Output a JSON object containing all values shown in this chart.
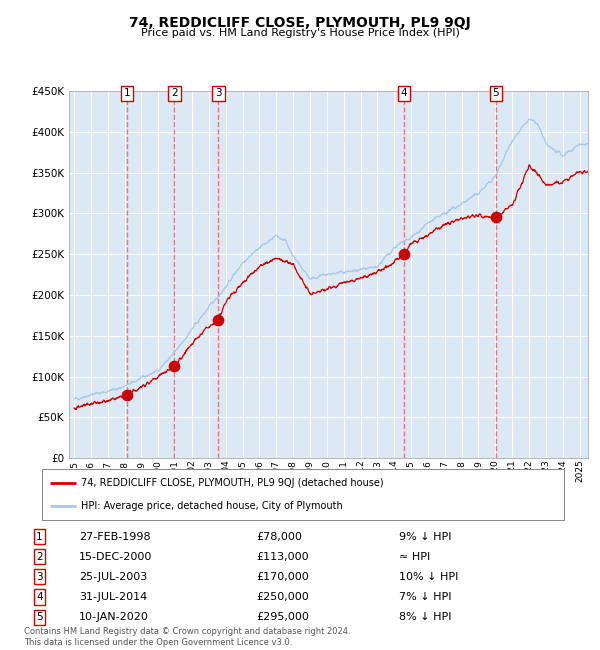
{
  "title": "74, REDDICLIFF CLOSE, PLYMOUTH, PL9 9QJ",
  "subtitle": "Price paid vs. HM Land Registry's House Price Index (HPI)",
  "background_color": "#dce9f5",
  "plot_bg_color": "#dce9f5",
  "hpi_color": "#a8c8e8",
  "price_color": "#cc0000",
  "marker_color": "#cc0000",
  "dashed_line_color": "#dd6666",
  "sale_dates_x": [
    1998.15,
    2000.96,
    2003.56,
    2014.58,
    2020.03
  ],
  "sale_prices_y": [
    78000,
    113000,
    170000,
    250000,
    295000
  ],
  "sale_labels": [
    "1",
    "2",
    "3",
    "4",
    "5"
  ],
  "sale_label_dates": [
    "27-FEB-1998",
    "15-DEC-2000",
    "25-JUL-2003",
    "31-JUL-2014",
    "10-JAN-2020"
  ],
  "sale_label_prices": [
    "£78,000",
    "£113,000",
    "£170,000",
    "£250,000",
    "£295,000"
  ],
  "sale_label_hpi": [
    "9% ↓ HPI",
    "≈ HPI",
    "10% ↓ HPI",
    "7% ↓ HPI",
    "8% ↓ HPI"
  ],
  "legend_line1": "74, REDDICLIFF CLOSE, PLYMOUTH, PL9 9QJ (detached house)",
  "legend_line2": "HPI: Average price, detached house, City of Plymouth",
  "footer": "Contains HM Land Registry data © Crown copyright and database right 2024.\nThis data is licensed under the Open Government Licence v3.0.",
  "ylim": [
    0,
    450000
  ],
  "xlim_start": 1994.7,
  "xlim_end": 2025.5,
  "ytick_values": [
    0,
    50000,
    100000,
    150000,
    200000,
    250000,
    300000,
    350000,
    400000,
    450000
  ],
  "ytick_labels": [
    "£0",
    "£50K",
    "£100K",
    "£150K",
    "£200K",
    "£250K",
    "£300K",
    "£350K",
    "£400K",
    "£450K"
  ],
  "xtick_years": [
    1995,
    1996,
    1997,
    1998,
    1999,
    2000,
    2001,
    2002,
    2003,
    2004,
    2005,
    2006,
    2007,
    2008,
    2009,
    2010,
    2011,
    2012,
    2013,
    2014,
    2015,
    2016,
    2017,
    2018,
    2019,
    2020,
    2021,
    2022,
    2023,
    2024,
    2025
  ]
}
